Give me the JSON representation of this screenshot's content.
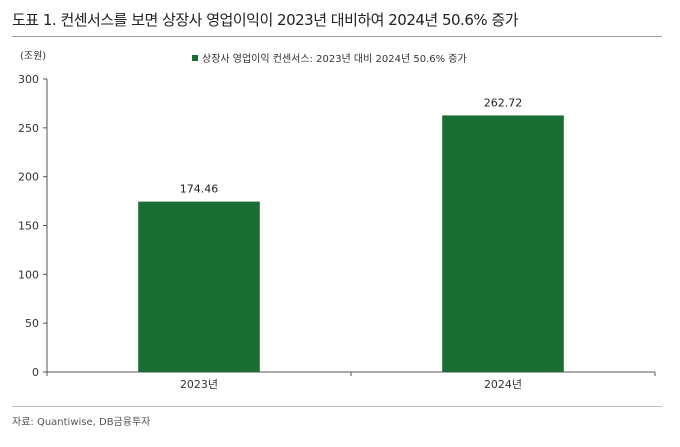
{
  "figure_title": "도표 1. 컨센서스를 보면 상장사 영업이익이 2023년 대비하여 2024년 50.6% 증가",
  "source": "자료: Quantiwise, DB금융투자",
  "chart_data": {
    "type": "bar",
    "unit_label": "(조원)",
    "categories": [
      "2023년",
      "2024년"
    ],
    "series": [
      {
        "name": "상장사 영업이익 컨센서스: 2023년 대비 2024년 50.6% 증가",
        "values": [
          174.46,
          262.72
        ],
        "color": "#1a6e34"
      }
    ],
    "data_labels": [
      "174.46",
      "262.72"
    ],
    "y_ticks": [
      0,
      50,
      100,
      150,
      200,
      250,
      300
    ],
    "ylim": [
      0,
      300
    ],
    "grid": false,
    "legend_position": "top-center"
  }
}
